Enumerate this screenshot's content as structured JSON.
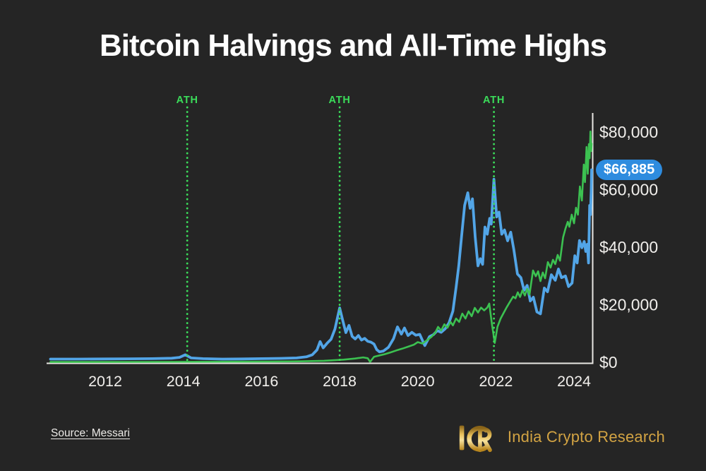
{
  "title": "Bitcoin Halvings and All-Time Highs",
  "badge": {
    "label": "$66,885",
    "value": 66885
  },
  "source": {
    "label": "Source: Messari"
  },
  "branding": {
    "monogram": "ICR",
    "name": "India Crypto Research"
  },
  "colors": {
    "background": "#252525",
    "title_text": "#ffffff",
    "axis": "#e9e7e3",
    "tick_text": "#f1efec",
    "blue_line": "#52a5e7",
    "green_line": "#3cc151",
    "ath_green": "#3bdc5a",
    "badge_blue": "#2e8cdf",
    "badge_text": "#ffffff",
    "gold": "#d2a343",
    "source_text": "#eceae7"
  },
  "chart_data": {
    "type": "line",
    "title": "Bitcoin Halvings and All-Time Highs",
    "xlabel": "",
    "ylabel": "",
    "grid": false,
    "legend": "none",
    "x_range": [
      2010.5,
      2024.45
    ],
    "y_range": [
      0,
      88000
    ],
    "x_ticks": [
      2012,
      2014,
      2016,
      2018,
      2020,
      2022,
      2024
    ],
    "y_ticks": [
      {
        "label": "$0",
        "value": 0
      },
      {
        "label": "$20,000",
        "value": 20000
      },
      {
        "label": "$40,000",
        "value": 40000
      },
      {
        "label": "$60,000",
        "value": 60000
      },
      {
        "label": "$80,000",
        "value": 80000
      }
    ],
    "ath_events": [
      {
        "label": "ATH",
        "year": 2014.1
      },
      {
        "label": "ATH",
        "year": 2018.0
      },
      {
        "label": "ATH",
        "year": 2021.95
      }
    ],
    "annotation": {
      "label": "$66,885",
      "value": 66885,
      "series": "blue"
    },
    "series": [
      {
        "name": "blue-price",
        "color_key": "blue_line",
        "width": 3.8,
        "points": [
          [
            2010.6,
            1100
          ],
          [
            2011.3,
            1100
          ],
          [
            2012.0,
            1150
          ],
          [
            2012.6,
            1200
          ],
          [
            2013.2,
            1250
          ],
          [
            2013.7,
            1400
          ],
          [
            2013.9,
            1700
          ],
          [
            2014.05,
            2600
          ],
          [
            2014.2,
            1500
          ],
          [
            2014.5,
            1250
          ],
          [
            2015.0,
            1100
          ],
          [
            2015.5,
            1150
          ],
          [
            2016.0,
            1250
          ],
          [
            2016.5,
            1350
          ],
          [
            2016.9,
            1500
          ],
          [
            2017.15,
            1900
          ],
          [
            2017.3,
            2600
          ],
          [
            2017.42,
            4300
          ],
          [
            2017.5,
            7200
          ],
          [
            2017.58,
            5000
          ],
          [
            2017.68,
            6600
          ],
          [
            2017.78,
            8000
          ],
          [
            2017.88,
            11500
          ],
          [
            2018.0,
            18900
          ],
          [
            2018.08,
            14500
          ],
          [
            2018.16,
            10300
          ],
          [
            2018.24,
            12800
          ],
          [
            2018.32,
            9000
          ],
          [
            2018.4,
            8100
          ],
          [
            2018.48,
            9300
          ],
          [
            2018.56,
            7700
          ],
          [
            2018.64,
            8300
          ],
          [
            2018.72,
            7300
          ],
          [
            2018.8,
            7000
          ],
          [
            2018.88,
            6300
          ],
          [
            2018.95,
            4400
          ],
          [
            2019.02,
            3600
          ],
          [
            2019.12,
            3900
          ],
          [
            2019.25,
            5200
          ],
          [
            2019.38,
            8200
          ],
          [
            2019.48,
            12300
          ],
          [
            2019.58,
            9800
          ],
          [
            2019.66,
            11900
          ],
          [
            2019.75,
            9300
          ],
          [
            2019.85,
            10400
          ],
          [
            2019.95,
            9400
          ],
          [
            2020.05,
            9700
          ],
          [
            2020.18,
            5800
          ],
          [
            2020.3,
            8900
          ],
          [
            2020.4,
            9600
          ],
          [
            2020.5,
            11000
          ],
          [
            2020.6,
            10400
          ],
          [
            2020.7,
            11600
          ],
          [
            2020.8,
            13700
          ],
          [
            2020.9,
            17800
          ],
          [
            2020.98,
            26000
          ],
          [
            2021.05,
            33500
          ],
          [
            2021.12,
            43500
          ],
          [
            2021.2,
            54500
          ],
          [
            2021.28,
            58900
          ],
          [
            2021.34,
            53500
          ],
          [
            2021.4,
            56800
          ],
          [
            2021.47,
            43500
          ],
          [
            2021.54,
            33500
          ],
          [
            2021.6,
            36000
          ],
          [
            2021.66,
            34000
          ],
          [
            2021.72,
            47000
          ],
          [
            2021.78,
            44500
          ],
          [
            2021.84,
            50000
          ],
          [
            2021.88,
            48000
          ],
          [
            2021.95,
            63600
          ],
          [
            2022.02,
            50500
          ],
          [
            2022.08,
            52200
          ],
          [
            2022.15,
            44500
          ],
          [
            2022.22,
            46000
          ],
          [
            2022.3,
            42200
          ],
          [
            2022.38,
            45200
          ],
          [
            2022.46,
            39000
          ],
          [
            2022.55,
            30700
          ],
          [
            2022.64,
            29400
          ],
          [
            2022.72,
            25000
          ],
          [
            2022.8,
            26700
          ],
          [
            2022.88,
            21300
          ],
          [
            2022.96,
            22600
          ],
          [
            2023.05,
            17500
          ],
          [
            2023.14,
            16800
          ],
          [
            2023.24,
            25800
          ],
          [
            2023.32,
            24500
          ],
          [
            2023.42,
            30400
          ],
          [
            2023.52,
            28500
          ],
          [
            2023.6,
            32400
          ],
          [
            2023.68,
            29400
          ],
          [
            2023.78,
            30000
          ],
          [
            2023.86,
            26300
          ],
          [
            2023.95,
            27500
          ],
          [
            2024.02,
            37000
          ],
          [
            2024.08,
            34500
          ],
          [
            2024.14,
            42300
          ],
          [
            2024.2,
            39800
          ],
          [
            2024.26,
            42000
          ],
          [
            2024.3,
            38500
          ],
          [
            2024.34,
            41000
          ],
          [
            2024.37,
            34500
          ],
          [
            2024.4,
            54500
          ],
          [
            2024.42,
            51300
          ],
          [
            2024.44,
            59400
          ],
          [
            2024.45,
            66885
          ]
        ]
      },
      {
        "name": "green-secondary",
        "color_key": "green_line",
        "width": 2.6,
        "points": [
          [
            2010.6,
            100
          ],
          [
            2013.0,
            130
          ],
          [
            2014.5,
            170
          ],
          [
            2016.0,
            230
          ],
          [
            2017.0,
            320
          ],
          [
            2017.6,
            520
          ],
          [
            2018.1,
            900
          ],
          [
            2018.4,
            1300
          ],
          [
            2018.6,
            1700
          ],
          [
            2018.72,
            1400
          ],
          [
            2018.78,
            150
          ],
          [
            2018.88,
            1900
          ],
          [
            2019.0,
            2300
          ],
          [
            2019.15,
            2800
          ],
          [
            2019.3,
            3400
          ],
          [
            2019.45,
            4100
          ],
          [
            2019.6,
            4700
          ],
          [
            2019.75,
            5400
          ],
          [
            2019.9,
            6100
          ],
          [
            2020.0,
            7000
          ],
          [
            2020.12,
            6500
          ],
          [
            2020.25,
            7800
          ],
          [
            2020.35,
            8800
          ],
          [
            2020.45,
            10300
          ],
          [
            2020.52,
            12300
          ],
          [
            2020.6,
            11000
          ],
          [
            2020.68,
            13200
          ],
          [
            2020.76,
            12000
          ],
          [
            2020.84,
            14000
          ],
          [
            2020.9,
            12800
          ],
          [
            2020.98,
            15200
          ],
          [
            2021.06,
            14000
          ],
          [
            2021.14,
            16900
          ],
          [
            2021.22,
            15200
          ],
          [
            2021.3,
            17700
          ],
          [
            2021.38,
            16000
          ],
          [
            2021.46,
            18900
          ],
          [
            2021.54,
            17300
          ],
          [
            2021.62,
            19000
          ],
          [
            2021.7,
            18000
          ],
          [
            2021.78,
            19000
          ],
          [
            2021.83,
            20400
          ],
          [
            2021.9,
            13000
          ],
          [
            2021.97,
            6700
          ],
          [
            2022.04,
            12300
          ],
          [
            2022.12,
            15200
          ],
          [
            2022.2,
            17200
          ],
          [
            2022.28,
            19200
          ],
          [
            2022.36,
            21000
          ],
          [
            2022.44,
            22800
          ],
          [
            2022.5,
            22200
          ],
          [
            2022.56,
            24300
          ],
          [
            2022.62,
            22700
          ],
          [
            2022.68,
            25000
          ],
          [
            2022.74,
            23200
          ],
          [
            2022.8,
            25500
          ],
          [
            2022.86,
            23500
          ],
          [
            2022.95,
            31900
          ],
          [
            2023.02,
            29900
          ],
          [
            2023.08,
            31600
          ],
          [
            2023.14,
            28200
          ],
          [
            2023.2,
            31200
          ],
          [
            2023.26,
            29200
          ],
          [
            2023.33,
            34800
          ],
          [
            2023.4,
            32900
          ],
          [
            2023.46,
            35600
          ],
          [
            2023.52,
            34100
          ],
          [
            2023.58,
            37300
          ],
          [
            2023.64,
            35300
          ],
          [
            2023.72,
            43400
          ],
          [
            2023.78,
            46400
          ],
          [
            2023.84,
            48800
          ],
          [
            2023.88,
            47100
          ],
          [
            2023.94,
            51300
          ],
          [
            2024.0,
            48300
          ],
          [
            2024.05,
            53700
          ],
          [
            2024.1,
            51300
          ],
          [
            2024.15,
            61100
          ],
          [
            2024.2,
            56200
          ],
          [
            2024.25,
            68700
          ],
          [
            2024.28,
            62600
          ],
          [
            2024.32,
            74800
          ],
          [
            2024.35,
            65500
          ],
          [
            2024.38,
            75800
          ],
          [
            2024.4,
            70900
          ],
          [
            2024.42,
            80200
          ],
          [
            2024.44,
            73400
          ],
          [
            2024.45,
            76000
          ]
        ]
      }
    ]
  }
}
